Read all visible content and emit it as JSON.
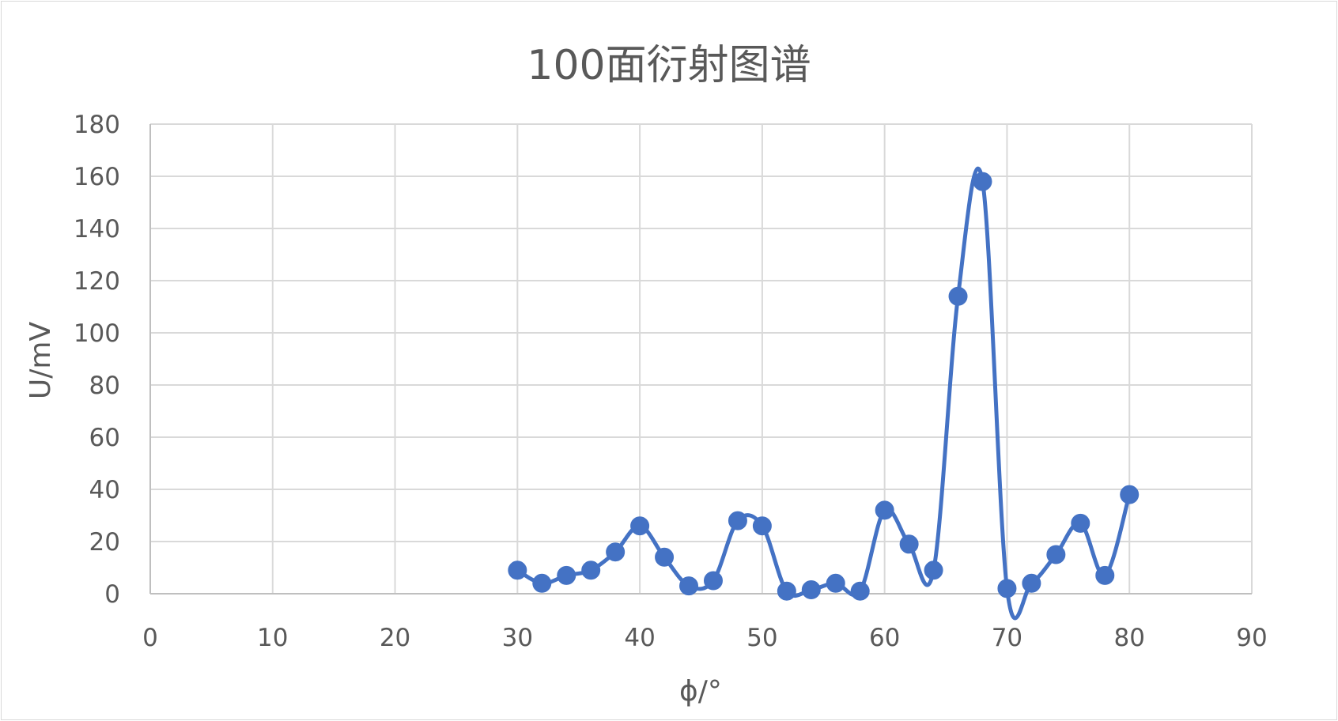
{
  "chart_data": {
    "type": "scatter",
    "title": "100面衍射图谱",
    "xlabel": "ϕ/°",
    "ylabel": "U/mV",
    "xlim": [
      0,
      90
    ],
    "ylim": [
      0,
      180
    ],
    "xticks": [
      0,
      10,
      20,
      30,
      40,
      50,
      60,
      70,
      80,
      90
    ],
    "yticks": [
      0,
      20,
      40,
      60,
      80,
      100,
      120,
      140,
      160,
      180
    ],
    "grid": true,
    "smooth_line": true,
    "marker": "circle",
    "legend": "none",
    "color": "#4472c4",
    "series": [
      {
        "x": [
          30,
          32,
          34,
          36,
          38,
          40,
          42,
          44,
          46,
          48,
          50,
          52,
          54,
          56,
          58,
          60,
          62,
          64,
          66,
          68,
          70,
          72,
          74,
          76,
          78,
          80
        ],
        "y": [
          9,
          4,
          7,
          9,
          16,
          26,
          14,
          3,
          5,
          28,
          26,
          1,
          1.5,
          4,
          1,
          32,
          19,
          9,
          114,
          158,
          2,
          4,
          15,
          27,
          7,
          38
        ]
      }
    ]
  }
}
